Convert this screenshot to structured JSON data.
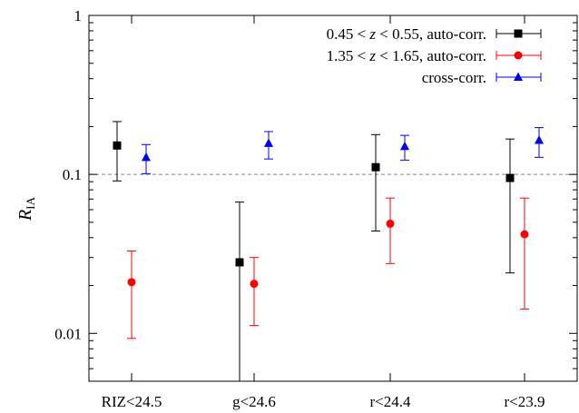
{
  "chart_data": {
    "type": "scatter",
    "ylabel": "R",
    "ylabel_subscript": "IA",
    "yscale": "log",
    "ylim": [
      0.005,
      1
    ],
    "y_tick_labels": [
      {
        "value": 1,
        "label": "1"
      },
      {
        "value": 0.1,
        "label": "0.1"
      },
      {
        "value": 0.01,
        "label": "0.01"
      }
    ],
    "categories": [
      "RIZ<24.5",
      "g<24.6",
      "r<24.4",
      "r<23.9"
    ],
    "reference_line": 0.1,
    "legend_position": "top-right",
    "series": [
      {
        "name": "0.45 < z < 0.55, auto-corr.",
        "legend_parts": [
          "0.45 < ",
          "z",
          " < 0.55, auto-corr."
        ],
        "color": "#000000",
        "marker": "square",
        "offset": -1,
        "points": [
          {
            "y": 0.152,
            "low": 0.091,
            "high": 0.215
          },
          {
            "y": 0.028,
            "low": 0.005,
            "high": 0.067
          },
          {
            "y": 0.111,
            "low": 0.044,
            "high": 0.178
          },
          {
            "y": 0.095,
            "low": 0.024,
            "high": 0.167
          }
        ]
      },
      {
        "name": "1.35 < z < 1.65, auto-corr.",
        "legend_parts": [
          "1.35 < ",
          "z",
          " < 1.65, auto-corr."
        ],
        "color": "#ff0000",
        "marker": "circle",
        "offset": 0,
        "points": [
          {
            "y": 0.021,
            "low": 0.0093,
            "high": 0.033
          },
          {
            "y": 0.0205,
            "low": 0.0112,
            "high": 0.03
          },
          {
            "y": 0.049,
            "low": 0.0275,
            "high": 0.071
          },
          {
            "y": 0.042,
            "low": 0.0142,
            "high": 0.071
          }
        ]
      },
      {
        "name": "cross-corr.",
        "legend_parts": [
          "",
          "",
          "cross-corr."
        ],
        "color": "#0000ff",
        "marker": "triangle",
        "offset": 1,
        "points": [
          {
            "y": 0.128,
            "low": 0.101,
            "high": 0.154
          },
          {
            "y": 0.157,
            "low": 0.125,
            "high": 0.186
          },
          {
            "y": 0.15,
            "low": 0.123,
            "high": 0.176
          },
          {
            "y": 0.164,
            "low": 0.128,
            "high": 0.197
          }
        ]
      }
    ]
  }
}
